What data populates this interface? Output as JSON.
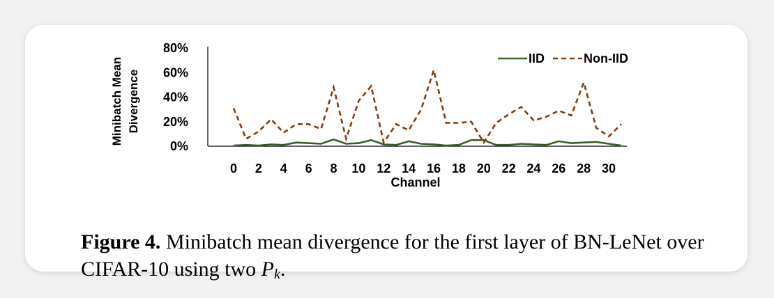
{
  "chart_data": {
    "type": "line",
    "xlabel": "Channel",
    "ylabel": [
      "Minibatch Mean",
      "Divergence"
    ],
    "x": [
      0,
      1,
      2,
      3,
      4,
      5,
      6,
      7,
      8,
      9,
      10,
      11,
      12,
      13,
      14,
      15,
      16,
      17,
      18,
      19,
      20,
      21,
      22,
      23,
      24,
      25,
      26,
      27,
      28,
      29,
      30,
      31
    ],
    "x_tick_labels": [
      "0",
      "2",
      "4",
      "6",
      "8",
      "10",
      "12",
      "14",
      "16",
      "18",
      "20",
      "22",
      "24",
      "26",
      "28",
      "30"
    ],
    "y_ticks": [
      "0%",
      "20%",
      "40%",
      "60%",
      "80%"
    ],
    "ylim": [
      0,
      80
    ],
    "legend_position": "top-right",
    "grid": false,
    "series": [
      {
        "name": "IID",
        "style": "solid",
        "color": "#3a5e27",
        "values": [
          0.5,
          1,
          0.5,
          1.5,
          1,
          3,
          2.5,
          2,
          5.5,
          2,
          2.5,
          5,
          1.5,
          1,
          4,
          2,
          1.5,
          0.5,
          1,
          5,
          5,
          1,
          1,
          2,
          1.5,
          1,
          4,
          2.5,
          3,
          3.5,
          2,
          0.5
        ]
      },
      {
        "name": "Non-IID",
        "style": "dashed",
        "color": "#843c0c",
        "values": [
          31,
          6,
          12,
          22,
          11,
          18,
          18,
          14,
          48,
          6,
          37,
          49,
          3,
          18,
          13,
          30,
          62,
          19,
          19,
          20,
          3,
          19,
          26,
          32,
          21,
          24,
          29,
          25,
          52,
          15,
          8,
          18
        ]
      }
    ]
  },
  "caption": {
    "label": "Figure 4.",
    "text": "Minibatch mean divergence for the first layer of BN-LeNet over CIFAR-10 using two",
    "math_base": "P",
    "math_sub": "k",
    "end": "."
  }
}
